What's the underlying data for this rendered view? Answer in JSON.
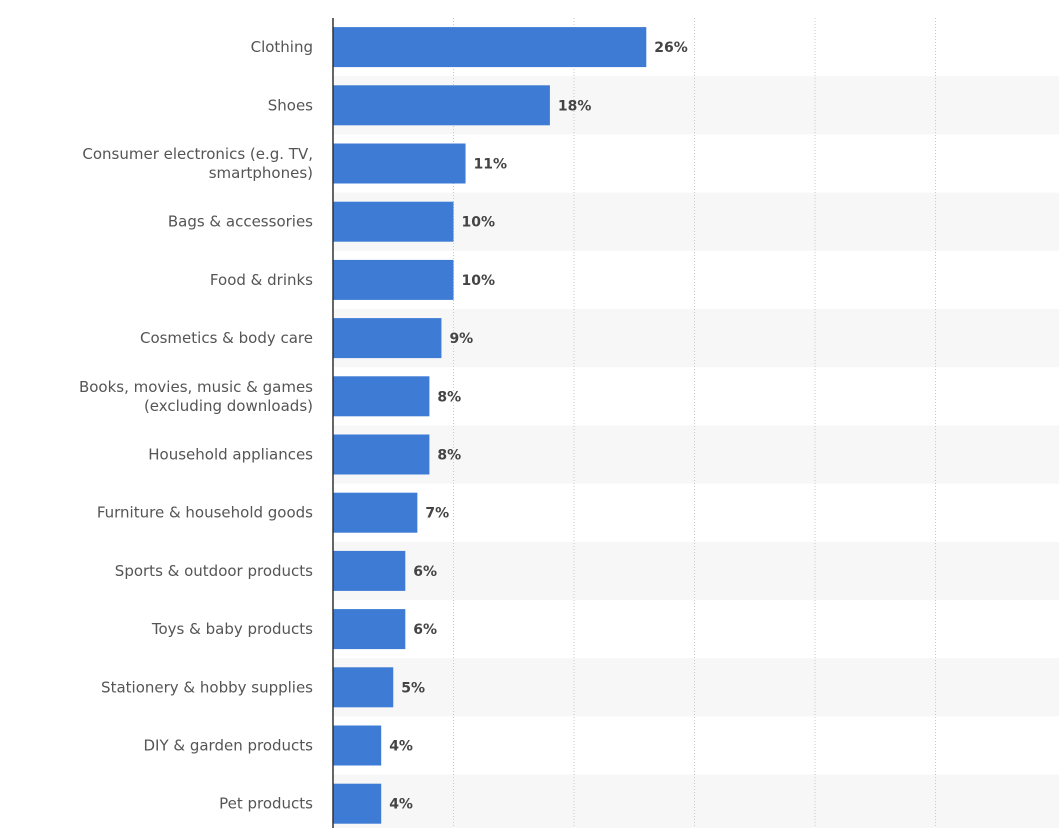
{
  "chart_data": {
    "type": "bar",
    "orientation": "horizontal",
    "categories": [
      "Clothing",
      "Shoes",
      "Consumer electronics (e.g. TV, smartphones)",
      "Bags & accessories",
      "Food & drinks",
      "Cosmetics & body care",
      "Books, movies, music & games (excluding downloads)",
      "Household appliances",
      "Furniture & household goods",
      "Sports & outdoor products",
      "Toys & baby products",
      "Stationery & hobby supplies",
      "DIY & garden products",
      "Pet products"
    ],
    "category_lines": [
      [
        "Clothing"
      ],
      [
        "Shoes"
      ],
      [
        "Consumer electronics (e.g. TV,",
        "smartphones)"
      ],
      [
        "Bags & accessories"
      ],
      [
        "Food & drinks"
      ],
      [
        "Cosmetics & body care"
      ],
      [
        "Books, movies, music & games",
        "(excluding downloads)"
      ],
      [
        "Household appliances"
      ],
      [
        "Furniture & household goods"
      ],
      [
        "Sports & outdoor products"
      ],
      [
        "Toys & baby products"
      ],
      [
        "Stationery & hobby supplies"
      ],
      [
        "DIY & garden products"
      ],
      [
        "Pet products"
      ]
    ],
    "values": [
      26,
      18,
      11,
      10,
      10,
      9,
      8,
      8,
      7,
      6,
      6,
      5,
      4,
      4
    ],
    "value_labels": [
      "26%",
      "18%",
      "11%",
      "10%",
      "10%",
      "9%",
      "8%",
      "8%",
      "7%",
      "6%",
      "6%",
      "5%",
      "4%",
      "4%"
    ],
    "unit": "%",
    "xlim": [
      0,
      60
    ],
    "xticks": [
      0,
      10,
      20,
      30,
      40,
      50
    ],
    "title": "",
    "xlabel": "",
    "ylabel": "",
    "grid": "vertical-dotted",
    "bar_color": "#3d7bd4",
    "stripe_color": "#f7f7f7"
  }
}
